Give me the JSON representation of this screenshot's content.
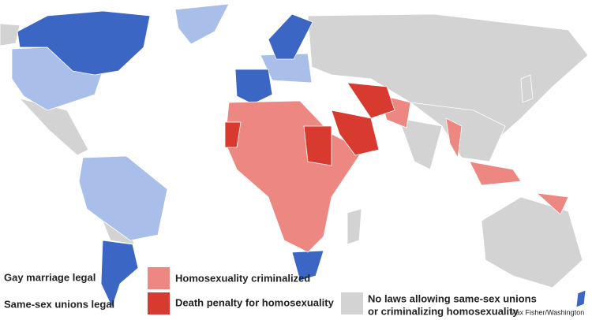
{
  "legend": [
    {
      "label": "Gay marriage legal",
      "color": "#3b66c3"
    },
    {
      "label": "Same-sex unions legal",
      "color": "#a9bfea"
    },
    {
      "label": "Homosexuality criminalized",
      "color": "#ec8781"
    },
    {
      "label": "Death penalty for homosexuality",
      "color": "#d83a2f"
    },
    {
      "label": [
        "No laws allowing same-sex unions",
        "or criminalizing homosexuality"
      ],
      "color": "#d3d3d3"
    }
  ],
  "credit": "Max Fisher/Washington"
}
